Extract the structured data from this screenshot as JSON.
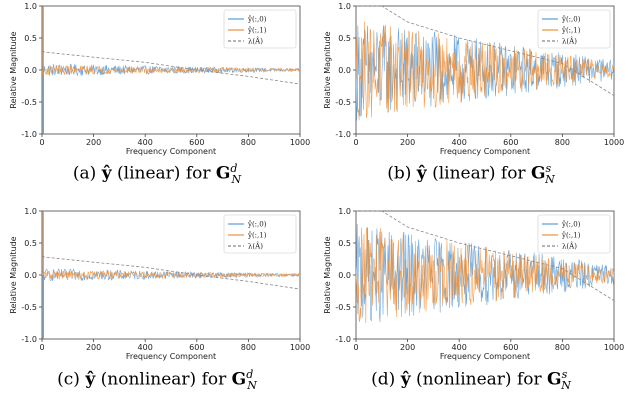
{
  "colors": {
    "series0": "#5b9bd5",
    "series1": "#f0913a",
    "lambda": "#888888",
    "axes": "#444444"
  },
  "captions": [
    {
      "letter": "(a)",
      "method": "(linear)",
      "for": "for",
      "graph": "G",
      "sub": "N",
      "sup": "d"
    },
    {
      "letter": "(b)",
      "method": "(linear)",
      "for": "for",
      "graph": "G",
      "sub": "N",
      "sup": "s"
    },
    {
      "letter": "(c)",
      "method": "(nonlinear)",
      "for": "for",
      "graph": "G",
      "sub": "N",
      "sup": "d"
    },
    {
      "letter": "(d)",
      "method": "(nonlinear)",
      "for": "for",
      "graph": "G",
      "sub": "N",
      "sup": "s"
    }
  ],
  "chart_data": [
    {
      "type": "line",
      "xlabel": "Frequency Component",
      "ylabel": "Relative Magnitude",
      "xlim": [
        0,
        1000
      ],
      "ylim": [
        -1.0,
        1.0
      ],
      "xticks": [
        "0",
        "200",
        "400",
        "600",
        "800",
        "1000"
      ],
      "yticks": [
        "-1.0",
        "-0.5",
        "0.0",
        "0.5",
        "1.0"
      ],
      "legend_position": "top-right",
      "series": [
        {
          "name": "ŷ(:,0)",
          "style": "dense",
          "spike_x": 0,
          "spike_value": -1.0,
          "amplitude_start": 0.1,
          "amplitude_end": 0.02
        },
        {
          "name": "ŷ(:,1)",
          "style": "dense",
          "spike_x": 0,
          "spike_value": 1.0,
          "amplitude_start": 0.08,
          "amplitude_end": 0.02
        },
        {
          "name": "λ(Â)",
          "style": "dashed",
          "x": [
            0,
            10,
            200,
            400,
            600,
            800,
            1000
          ],
          "values": [
            0.3,
            0.28,
            0.2,
            0.12,
            0.0,
            -0.1,
            -0.22
          ]
        }
      ]
    },
    {
      "type": "line",
      "xlabel": "Frequency Component",
      "ylabel": "Relative Magnitude",
      "xlim": [
        0,
        1000
      ],
      "ylim": [
        -1.0,
        1.0
      ],
      "xticks": [
        "0",
        "200",
        "400",
        "600",
        "800",
        "1000"
      ],
      "yticks": [
        "-1.0",
        "-0.5",
        "0.0",
        "0.5",
        "1.0"
      ],
      "legend_position": "top-right",
      "series": [
        {
          "name": "ŷ(:,0)",
          "style": "dense",
          "spike_x": 0,
          "spike_value": 0.0,
          "amplitude_start": 0.8,
          "amplitude_end": 0.15
        },
        {
          "name": "ŷ(:,1)",
          "style": "dense",
          "spike_x": 0,
          "spike_value": 0.0,
          "amplitude_start": 0.8,
          "amplitude_end": 0.1
        },
        {
          "name": "λ(Â)",
          "style": "dashed",
          "x": [
            0,
            100,
            200,
            400,
            600,
            800,
            1000
          ],
          "values": [
            1.0,
            1.0,
            0.75,
            0.5,
            0.3,
            0.1,
            -0.4
          ]
        }
      ]
    },
    {
      "type": "line",
      "xlabel": "Frequency Component",
      "ylabel": "Relative Magnitude",
      "xlim": [
        0,
        1000
      ],
      "ylim": [
        -1.0,
        1.0
      ],
      "xticks": [
        "0",
        "200",
        "400",
        "600",
        "800",
        "1000"
      ],
      "yticks": [
        "-1.0",
        "-0.5",
        "0.0",
        "0.5",
        "1.0"
      ],
      "legend_position": "top-right",
      "series": [
        {
          "name": "ŷ(:,0)",
          "style": "dense",
          "spike_x": 0,
          "spike_value": -1.0,
          "amplitude_start": 0.1,
          "amplitude_end": 0.02
        },
        {
          "name": "ŷ(:,1)",
          "style": "dense",
          "spike_x": 0,
          "spike_value": 1.0,
          "amplitude_start": 0.08,
          "amplitude_end": 0.02
        },
        {
          "name": "λ(Â)",
          "style": "dashed",
          "x": [
            0,
            10,
            200,
            400,
            600,
            800,
            1000
          ],
          "values": [
            0.3,
            0.28,
            0.2,
            0.12,
            0.0,
            -0.1,
            -0.22
          ]
        }
      ]
    },
    {
      "type": "line",
      "xlabel": "Frequency Component",
      "ylabel": "Relative Magnitude",
      "xlim": [
        0,
        1000
      ],
      "ylim": [
        -1.0,
        1.0
      ],
      "xticks": [
        "0",
        "200",
        "400",
        "600",
        "800",
        "1000"
      ],
      "yticks": [
        "-1.0",
        "-0.5",
        "0.0",
        "0.5",
        "1.0"
      ],
      "legend_position": "top-right",
      "series": [
        {
          "name": "ŷ(:,0)",
          "style": "dense",
          "spike_x": 0,
          "spike_value": 0.0,
          "amplitude_start": 0.8,
          "amplitude_end": 0.15
        },
        {
          "name": "ŷ(:,1)",
          "style": "dense",
          "spike_x": 0,
          "spike_value": 0.0,
          "amplitude_start": 0.8,
          "amplitude_end": 0.1
        },
        {
          "name": "λ(Â)",
          "style": "dashed",
          "x": [
            0,
            100,
            200,
            400,
            600,
            800,
            1000
          ],
          "values": [
            1.0,
            1.0,
            0.75,
            0.5,
            0.3,
            0.1,
            -0.4
          ]
        }
      ]
    }
  ]
}
